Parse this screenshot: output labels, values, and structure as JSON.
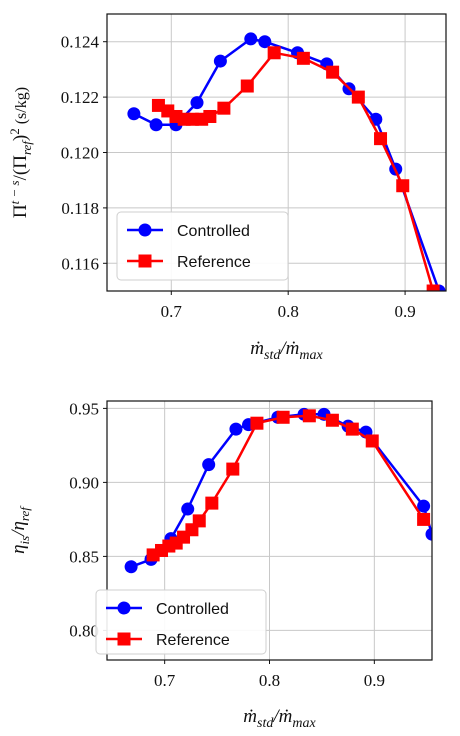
{
  "chart_data": [
    {
      "type": "line",
      "title": "",
      "xlabel_base": "ṁ",
      "xlabel_sub1": "std",
      "xlabel_mid": "/ṁ",
      "xlabel_sub2": "max",
      "ylabel_a": "Π",
      "ylabel_sup": "t − s",
      "ylabel_b": "/(Π",
      "ylabel_sub": "ref",
      "ylabel_c": ")",
      "ylabel_sq": "2",
      "ylabel_d": " (s/kg)",
      "xlim": [
        0.645,
        0.935
      ],
      "ylim": [
        0.115,
        0.125
      ],
      "xticks": [
        0.7,
        0.8,
        0.9
      ],
      "xtick_labels": [
        "0.7",
        "0.8",
        "0.9"
      ],
      "yticks": [
        0.116,
        0.118,
        0.12,
        0.122,
        0.124
      ],
      "ytick_labels": [
        "0.116",
        "0.118",
        "0.120",
        "0.122",
        "0.124"
      ],
      "grid": true,
      "legend_position": "bottom-left",
      "series": [
        {
          "name": "Controlled",
          "color": "#0000ff",
          "marker": "circle",
          "x": [
            0.668,
            0.687,
            0.704,
            0.722,
            0.742,
            0.768,
            0.78,
            0.808,
            0.833,
            0.852,
            0.875,
            0.892,
            0.929
          ],
          "y": [
            0.1214,
            0.121,
            0.121,
            0.1218,
            0.1233,
            0.1241,
            0.124,
            0.1236,
            0.1232,
            0.1223,
            0.1212,
            0.1194,
            0.115
          ]
        },
        {
          "name": "Reference",
          "color": "#ff0000",
          "marker": "square",
          "x": [
            0.689,
            0.697,
            0.704,
            0.711,
            0.718,
            0.726,
            0.733,
            0.745,
            0.765,
            0.788,
            0.813,
            0.838,
            0.86,
            0.879,
            0.898,
            0.924
          ],
          "y": [
            0.1217,
            0.1215,
            0.1213,
            0.1212,
            0.1212,
            0.1212,
            0.1213,
            0.1216,
            0.1224,
            0.1236,
            0.1234,
            0.1229,
            0.122,
            0.1205,
            0.1188,
            0.115
          ]
        }
      ]
    },
    {
      "type": "line",
      "title": "",
      "xlabel_base": "ṁ",
      "xlabel_sub1": "std",
      "xlabel_mid": "/ṁ",
      "xlabel_sub2": "max",
      "ylabel_a": "η",
      "ylabel_sub": "is",
      "ylabel_b": "/η",
      "ylabel_sub2": "ref",
      "xlim": [
        0.645,
        0.955
      ],
      "ylim": [
        0.78,
        0.955
      ],
      "xticks": [
        0.7,
        0.8,
        0.9
      ],
      "xtick_labels": [
        "0.7",
        "0.8",
        "0.9"
      ],
      "yticks": [
        0.8,
        0.85,
        0.9,
        0.95
      ],
      "ytick_labels": [
        "0.80",
        "0.85",
        "0.90",
        "0.95"
      ],
      "grid": true,
      "legend_position": "bottom-left",
      "series": [
        {
          "name": "Controlled",
          "color": "#0000ff",
          "marker": "circle",
          "x": [
            0.668,
            0.687,
            0.706,
            0.722,
            0.742,
            0.768,
            0.78,
            0.808,
            0.833,
            0.852,
            0.875,
            0.892,
            0.947,
            0.955
          ],
          "y": [
            0.843,
            0.848,
            0.862,
            0.882,
            0.912,
            0.936,
            0.939,
            0.944,
            0.946,
            0.946,
            0.938,
            0.934,
            0.884,
            0.865
          ]
        },
        {
          "name": "Reference",
          "color": "#ff0000",
          "marker": "square",
          "x": [
            0.689,
            0.697,
            0.704,
            0.711,
            0.718,
            0.726,
            0.733,
            0.745,
            0.765,
            0.788,
            0.813,
            0.838,
            0.86,
            0.879,
            0.898,
            0.947
          ],
          "y": [
            0.851,
            0.854,
            0.857,
            0.859,
            0.863,
            0.868,
            0.874,
            0.886,
            0.909,
            0.94,
            0.944,
            0.945,
            0.942,
            0.936,
            0.928,
            0.875
          ]
        }
      ]
    }
  ]
}
